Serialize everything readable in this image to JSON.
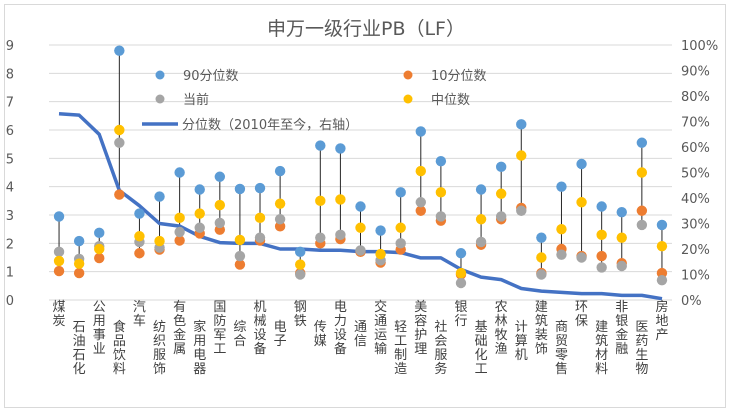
{
  "chart_data": {
    "type": "scatter",
    "title": "申万一级行业PB（LF）",
    "xlabel": "",
    "ylabel": "",
    "ylim": [
      0,
      9
    ],
    "y2lim": [
      0,
      1
    ],
    "yticks": [
      "0",
      "1",
      "2",
      "3",
      "4",
      "5",
      "6",
      "7",
      "8",
      "9"
    ],
    "y2ticks": [
      "0%",
      "10%",
      "20%",
      "30%",
      "40%",
      "50%",
      "60%",
      "70%",
      "80%",
      "90%",
      "100%"
    ],
    "grid": true,
    "legend_position": "top-left-inside",
    "categories": [
      "煤炭",
      "石油石化",
      "公用事业",
      "食品饮料",
      "汽车",
      "纺织服饰",
      "有色金属",
      "家用电器",
      "国防军工",
      "综合",
      "机械设备",
      "电子",
      "钢铁",
      "传媒",
      "电力设备",
      "通信",
      "交通运输",
      "轻工制造",
      "美容护理",
      "社会服务",
      "银行",
      "基础化工",
      "农林牧渔",
      "计算机",
      "建筑装饰",
      "商贸零售",
      "环保",
      "建筑材料",
      "非银金融",
      "医药生物",
      "房地产"
    ],
    "series": [
      {
        "name": "90分位数",
        "kind": "dot",
        "color": "#5b9bd5",
        "values": [
          2.95,
          2.08,
          2.37,
          8.8,
          3.05,
          3.65,
          4.5,
          3.9,
          4.35,
          3.92,
          3.95,
          4.55,
          1.7,
          5.45,
          5.35,
          3.3,
          2.45,
          3.8,
          5.95,
          4.9,
          1.65,
          3.9,
          4.7,
          6.2,
          2.2,
          4.0,
          4.8,
          3.3,
          3.1,
          5.55,
          2.65
        ]
      },
      {
        "name": "10分位数",
        "kind": "dot",
        "color": "#ed7d31",
        "values": [
          1.02,
          0.95,
          1.48,
          3.72,
          1.65,
          1.78,
          2.1,
          2.35,
          2.48,
          1.25,
          2.1,
          2.6,
          0.95,
          2.0,
          2.15,
          1.7,
          1.32,
          1.78,
          3.15,
          2.8,
          0.9,
          1.95,
          2.85,
          3.25,
          0.95,
          1.8,
          1.55,
          1.55,
          1.3,
          3.15,
          0.95
        ]
      },
      {
        "name": "当前",
        "kind": "dot",
        "color": "#a5a5a5",
        "values": [
          1.7,
          1.45,
          1.9,
          5.55,
          2.05,
          1.85,
          2.4,
          2.55,
          2.72,
          1.55,
          2.2,
          2.85,
          0.9,
          2.2,
          2.3,
          1.75,
          1.4,
          2.0,
          3.45,
          2.95,
          0.6,
          2.05,
          2.95,
          3.15,
          0.9,
          1.6,
          1.5,
          1.15,
          1.2,
          2.65,
          0.7
        ]
      },
      {
        "name": "中位数",
        "kind": "dot",
        "color": "#ffc000",
        "values": [
          1.38,
          1.28,
          1.8,
          6.0,
          2.25,
          2.08,
          2.9,
          3.05,
          3.35,
          2.12,
          2.9,
          3.4,
          1.25,
          3.5,
          3.55,
          2.55,
          1.62,
          2.55,
          4.55,
          3.8,
          0.95,
          2.85,
          3.75,
          5.1,
          1.5,
          2.5,
          3.45,
          2.3,
          2.2,
          4.5,
          1.9
        ]
      },
      {
        "name": "分位数（2010年至今，右轴）",
        "kind": "line",
        "axis": "right",
        "color": "#4472c4",
        "values": [
          0.73,
          0.725,
          0.65,
          0.43,
          0.37,
          0.3,
          0.29,
          0.25,
          0.225,
          0.222,
          0.222,
          0.2,
          0.2,
          0.195,
          0.195,
          0.19,
          0.19,
          0.186,
          0.165,
          0.165,
          0.12,
          0.09,
          0.08,
          0.045,
          0.035,
          0.03,
          0.025,
          0.025,
          0.018,
          0.018,
          0.005
        ]
      }
    ],
    "legend": [
      {
        "label": "90分位数",
        "color": "#5b9bd5"
      },
      {
        "label": "10分位数",
        "color": "#ed7d31"
      },
      {
        "label": "当前",
        "color": "#a5a5a5"
      },
      {
        "label": "中位数",
        "color": "#ffc000"
      },
      {
        "label": "分位数（2010年至今，右轴）",
        "color": "#4472c4"
      }
    ]
  }
}
